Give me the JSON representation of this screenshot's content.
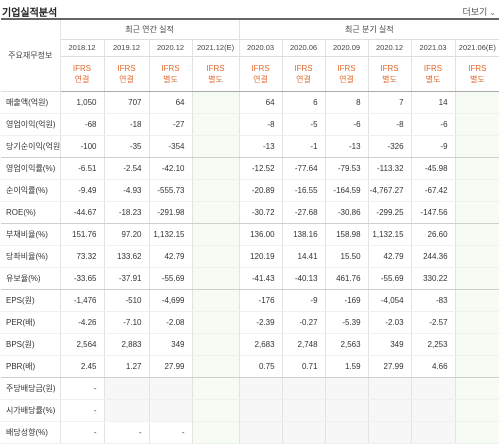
{
  "header": {
    "title": "기업실적분석",
    "more": "더보기",
    "more_icon": "chevron-down-icon"
  },
  "table": {
    "stub_label": "주요재무정보",
    "group_annual": "최근 연간 실적",
    "group_quarter": "최근 분기 실적",
    "annual_dates": [
      "2018.12",
      "2019.12",
      "2020.12",
      "2021.12(E)"
    ],
    "quarter_dates": [
      "2020.03",
      "2020.06",
      "2020.09",
      "2020.12",
      "2021.03",
      "2021.06(E)"
    ],
    "ifrs": [
      {
        "a": "IFRS",
        "b": "연결"
      },
      {
        "a": "IFRS",
        "b": "연결"
      },
      {
        "a": "IFRS",
        "b": "별도"
      },
      {
        "a": "IFRS",
        "b": "별도"
      },
      {
        "a": "IFRS",
        "b": "연결"
      },
      {
        "a": "IFRS",
        "b": "연결"
      },
      {
        "a": "IFRS",
        "b": "연결"
      },
      {
        "a": "IFRS",
        "b": "별도"
      },
      {
        "a": "IFRS",
        "b": "별도"
      },
      {
        "a": "IFRS",
        "b": "별도"
      }
    ],
    "rows": [
      {
        "label": "매출액(억원)",
        "vals": [
          "1,050",
          "707",
          "64",
          "",
          "64",
          "6",
          "8",
          "7",
          "14",
          ""
        ]
      },
      {
        "label": "영업이익(억원)",
        "vals": [
          "-68",
          "-18",
          "-27",
          "",
          "-8",
          "-5",
          "-6",
          "-8",
          "-6",
          ""
        ]
      },
      {
        "label": "당기순이익(억원)",
        "vals": [
          "-100",
          "-35",
          "-354",
          "",
          "-13",
          "-1",
          "-13",
          "-326",
          "-9",
          ""
        ]
      },
      {
        "label": "영업이익률(%)",
        "vals": [
          "-6.51",
          "-2.54",
          "-42.10",
          "",
          "-12.52",
          "-77.64",
          "-79.53",
          "-113.32",
          "-45.98",
          ""
        ]
      },
      {
        "label": "순이익률(%)",
        "vals": [
          "-9.49",
          "-4.93",
          "-555.73",
          "",
          "-20.89",
          "-16.55",
          "-164.59",
          "-4,767.27",
          "-67.42",
          ""
        ]
      },
      {
        "label": "ROE(%)",
        "vals": [
          "-44.67",
          "-18.23",
          "-291.98",
          "",
          "-30.72",
          "-27.68",
          "-30.86",
          "-299.25",
          "-147.56",
          ""
        ]
      },
      {
        "label": "부채비율(%)",
        "vals": [
          "151.76",
          "97.20",
          "1,132.15",
          "",
          "136.00",
          "138.16",
          "158.98",
          "1,132.15",
          "26.60",
          ""
        ]
      },
      {
        "label": "당좌비율(%)",
        "vals": [
          "73.32",
          "133.62",
          "42.79",
          "",
          "120.19",
          "14.41",
          "15.50",
          "42.79",
          "244.36",
          ""
        ]
      },
      {
        "label": "유보율(%)",
        "vals": [
          "-33.65",
          "-37.91",
          "-55.69",
          "",
          "-41.43",
          "-40.13",
          "461.76",
          "-55.69",
          "330.22",
          ""
        ]
      },
      {
        "label": "EPS(원)",
        "vals": [
          "-1,476",
          "-510",
          "-4,699",
          "",
          "-176",
          "-9",
          "-169",
          "-4,054",
          "-83",
          ""
        ]
      },
      {
        "label": "PER(배)",
        "vals": [
          "-4.26",
          "-7.10",
          "-2.08",
          "",
          "-2.39",
          "-0.27",
          "-5.39",
          "-2.03",
          "-2.57",
          ""
        ]
      },
      {
        "label": "BPS(원)",
        "vals": [
          "2,564",
          "2,883",
          "349",
          "",
          "2,683",
          "2,748",
          "2,563",
          "349",
          "2,253",
          ""
        ]
      },
      {
        "label": "PBR(배)",
        "vals": [
          "2.45",
          "1.27",
          "27.99",
          "",
          "0.75",
          "0.71",
          "1.59",
          "27.99",
          "4.66",
          ""
        ]
      },
      {
        "label": "주당배당금(원)",
        "vals": [
          "-",
          "",
          "",
          "",
          "",
          "",
          "",
          "",
          "",
          ""
        ]
      },
      {
        "label": "시가배당률(%)",
        "vals": [
          "-",
          "",
          "",
          "",
          "",
          "",
          "",
          "",
          "",
          ""
        ]
      },
      {
        "label": "배당성향(%)",
        "vals": [
          "-",
          "-",
          "-",
          "",
          "",
          "",
          "",
          "",
          "",
          ""
        ]
      }
    ]
  }
}
